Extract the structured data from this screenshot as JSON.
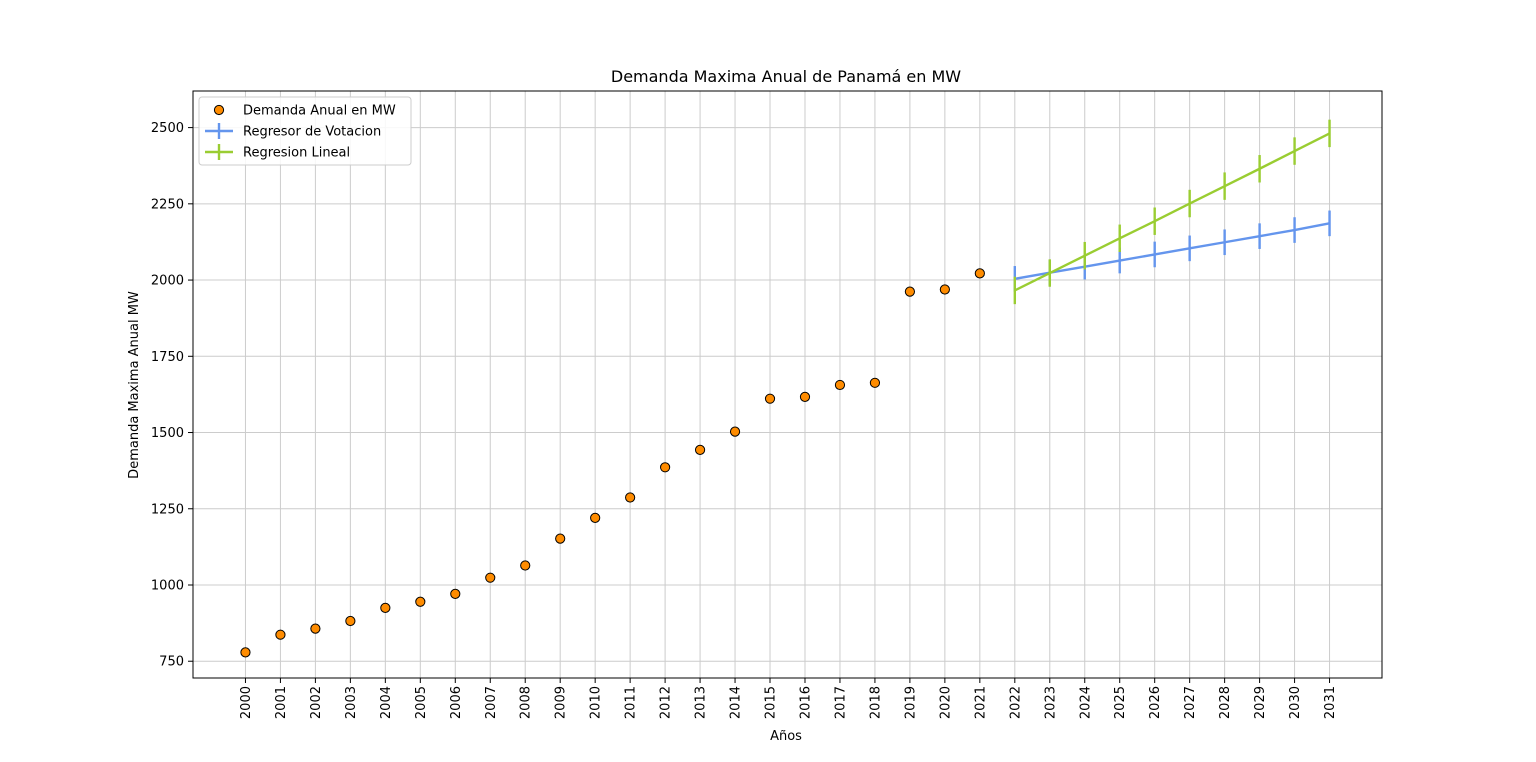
{
  "chart_data": {
    "type": "scatter",
    "title": "Demanda Maxima Anual de Panamá en MW",
    "xlabel": "Años",
    "ylabel": "Demanda Maxima Anual MW",
    "ylim": [
      695,
      2620
    ],
    "yticks": [
      750,
      1000,
      1250,
      1500,
      1750,
      2000,
      2250,
      2500
    ],
    "x_ticks": [
      2000,
      2001,
      2002,
      2003,
      2004,
      2005,
      2006,
      2007,
      2008,
      2009,
      2010,
      2011,
      2012,
      2013,
      2014,
      2015,
      2016,
      2017,
      2018,
      2019,
      2020,
      2021,
      2022,
      2023,
      2024,
      2025,
      2026,
      2027,
      2028,
      2029,
      2030,
      2031
    ],
    "grid": true,
    "legend_position": "top-left",
    "series": [
      {
        "name": "Demanda Anual en MW",
        "kind": "scatter",
        "color": "#ff8c00",
        "edge_color": "#000000",
        "x": [
          2000,
          2001,
          2002,
          2003,
          2004,
          2005,
          2006,
          2007,
          2008,
          2009,
          2010,
          2011,
          2012,
          2013,
          2014,
          2015,
          2016,
          2017,
          2018,
          2019,
          2020,
          2021
        ],
        "y": [
          779,
          837,
          857,
          882,
          925,
          945,
          971,
          1024,
          1064,
          1152,
          1220,
          1287,
          1386,
          1443,
          1503,
          1611,
          1617,
          1656,
          1663,
          1962,
          1969,
          2022
        ]
      },
      {
        "name": "Regresor de Votacion",
        "kind": "errorbar",
        "color": "#6495ed",
        "x": [
          2022,
          2023,
          2024,
          2025,
          2026,
          2027,
          2028,
          2029,
          2030,
          2031
        ],
        "y": [
          2004,
          2024,
          2044,
          2064,
          2084,
          2104,
          2124,
          2144,
          2164,
          2186
        ],
        "err": [
          42,
          42,
          42,
          42,
          42,
          42,
          42,
          42,
          42,
          42
        ]
      },
      {
        "name": "Regresion Lineal",
        "kind": "errorbar",
        "color": "#9acd32",
        "x": [
          2022,
          2023,
          2024,
          2025,
          2026,
          2027,
          2028,
          2029,
          2030,
          2031
        ],
        "y": [
          1966,
          2023,
          2080,
          2137,
          2193,
          2251,
          2308,
          2365,
          2423,
          2481
        ],
        "err": [
          45,
          45,
          45,
          45,
          45,
          45,
          45,
          45,
          45,
          45
        ]
      }
    ]
  }
}
